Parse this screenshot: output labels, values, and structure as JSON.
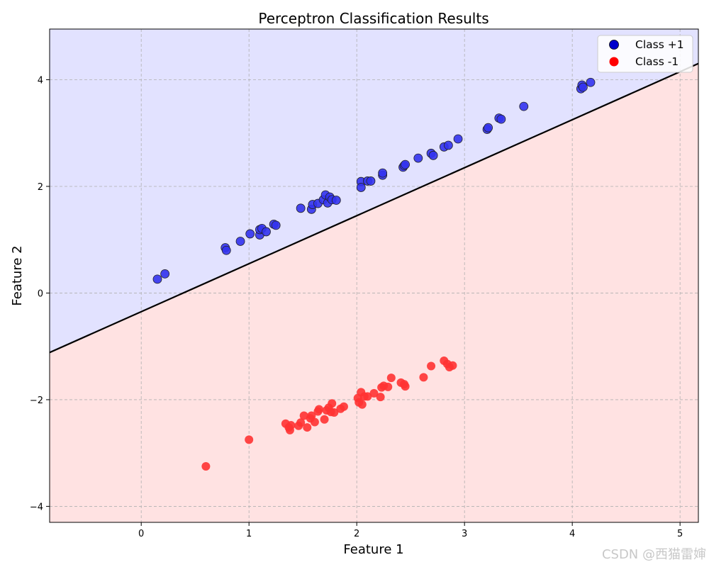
{
  "chart_data": {
    "type": "scatter",
    "title": "Perceptron Classification Results",
    "xlabel": "Feature 1",
    "ylabel": "Feature 2",
    "xlim": [
      -0.85,
      5.17
    ],
    "ylim": [
      -4.3,
      4.95
    ],
    "xticks": [
      0,
      1,
      2,
      3,
      4,
      5
    ],
    "yticks": [
      -4,
      -2,
      0,
      2,
      4
    ],
    "grid": true,
    "legend_position": "top-right",
    "decision_boundary": {
      "slope": 0.9,
      "intercept": -0.35,
      "above_label": "Class +1",
      "below_label": "Class -1"
    },
    "region_colors": {
      "above": "#e2e2ff",
      "below": "#ffe2e2"
    },
    "series": [
      {
        "name": "Class +1",
        "color": "#3333ee",
        "legend_color": "#0000cc",
        "points": [
          [
            0.15,
            0.26
          ],
          [
            0.22,
            0.36
          ],
          [
            0.78,
            0.85
          ],
          [
            0.79,
            0.8
          ],
          [
            0.92,
            0.97
          ],
          [
            1.01,
            1.11
          ],
          [
            1.1,
            1.09
          ],
          [
            1.1,
            1.19
          ],
          [
            1.12,
            1.21
          ],
          [
            1.16,
            1.15
          ],
          [
            1.23,
            1.29
          ],
          [
            1.25,
            1.27
          ],
          [
            1.48,
            1.59
          ],
          [
            1.58,
            1.57
          ],
          [
            1.59,
            1.66
          ],
          [
            1.64,
            1.68
          ],
          [
            1.69,
            1.75
          ],
          [
            1.71,
            1.84
          ],
          [
            1.73,
            1.69
          ],
          [
            1.75,
            1.8
          ],
          [
            1.77,
            1.75
          ],
          [
            1.81,
            1.74
          ],
          [
            2.04,
            2.09
          ],
          [
            2.04,
            1.98
          ],
          [
            2.1,
            2.1
          ],
          [
            2.13,
            2.1
          ],
          [
            2.24,
            2.21
          ],
          [
            2.24,
            2.25
          ],
          [
            2.43,
            2.36
          ],
          [
            2.44,
            2.39
          ],
          [
            2.45,
            2.41
          ],
          [
            2.57,
            2.53
          ],
          [
            2.69,
            2.62
          ],
          [
            2.71,
            2.58
          ],
          [
            2.81,
            2.74
          ],
          [
            2.85,
            2.77
          ],
          [
            2.94,
            2.89
          ],
          [
            3.21,
            3.07
          ],
          [
            3.22,
            3.1
          ],
          [
            3.32,
            3.28
          ],
          [
            3.34,
            3.26
          ],
          [
            3.55,
            3.5
          ],
          [
            4.08,
            3.83
          ],
          [
            4.09,
            3.9
          ],
          [
            4.1,
            3.86
          ],
          [
            4.17,
            3.95
          ]
        ]
      },
      {
        "name": "Class -1",
        "color": "#ff3333",
        "legend_color": "#ff0000",
        "points": [
          [
            0.6,
            -3.25
          ],
          [
            1.0,
            -2.75
          ],
          [
            1.34,
            -2.45
          ],
          [
            1.37,
            -2.52
          ],
          [
            1.38,
            -2.57
          ],
          [
            1.39,
            -2.48
          ],
          [
            1.46,
            -2.49
          ],
          [
            1.48,
            -2.43
          ],
          [
            1.51,
            -2.3
          ],
          [
            1.54,
            -2.52
          ],
          [
            1.57,
            -2.35
          ],
          [
            1.58,
            -2.3
          ],
          [
            1.61,
            -2.42
          ],
          [
            1.64,
            -2.22
          ],
          [
            1.65,
            -2.18
          ],
          [
            1.7,
            -2.37
          ],
          [
            1.72,
            -2.2
          ],
          [
            1.74,
            -2.15
          ],
          [
            1.76,
            -2.23
          ],
          [
            1.77,
            -2.07
          ],
          [
            1.79,
            -2.24
          ],
          [
            1.85,
            -2.17
          ],
          [
            1.88,
            -2.13
          ],
          [
            2.01,
            -1.97
          ],
          [
            2.02,
            -2.05
          ],
          [
            2.04,
            -1.86
          ],
          [
            2.05,
            -2.09
          ],
          [
            2.07,
            -1.94
          ],
          [
            2.1,
            -1.94
          ],
          [
            2.16,
            -1.88
          ],
          [
            2.22,
            -1.95
          ],
          [
            2.23,
            -1.77
          ],
          [
            2.25,
            -1.74
          ],
          [
            2.29,
            -1.76
          ],
          [
            2.32,
            -1.59
          ],
          [
            2.41,
            -1.68
          ],
          [
            2.44,
            -1.71
          ],
          [
            2.45,
            -1.75
          ],
          [
            2.62,
            -1.58
          ],
          [
            2.69,
            -1.37
          ],
          [
            2.81,
            -1.27
          ],
          [
            2.84,
            -1.33
          ],
          [
            2.86,
            -1.39
          ],
          [
            2.89,
            -1.36
          ]
        ]
      }
    ]
  },
  "watermark": "CSDN @西猫雷婶"
}
